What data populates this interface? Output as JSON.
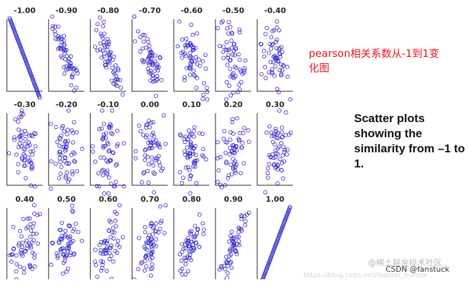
{
  "caption_cn": "pearson相关系数从-1到1变化图",
  "caption_en": "Scatter plots showing the similarity from –1 to 1.",
  "watermarks": {
    "juejin": "@稀土掘金技术社区",
    "csdn": "CSDN @fanstuck",
    "url": "https://blog.csdn.net/master_hunter"
  },
  "colors": {
    "marker": "#2a22c8",
    "axis": "#222222",
    "caption_cn": "#e8141c"
  },
  "chart_data": {
    "type": "scatter",
    "layout": "small-multiples",
    "rows": 3,
    "cols": 7,
    "marker": "open-circle",
    "panels": [
      {
        "label": "-1.00",
        "r": -1.0
      },
      {
        "label": "-0.90",
        "r": -0.9
      },
      {
        "label": "-0.80",
        "r": -0.8
      },
      {
        "label": "-0.70",
        "r": -0.7
      },
      {
        "label": "-0.60",
        "r": -0.6
      },
      {
        "label": "-0.50",
        "r": -0.5
      },
      {
        "label": "-0.40",
        "r": -0.4
      },
      {
        "label": "-0.30",
        "r": -0.3
      },
      {
        "label": "-0.20",
        "r": -0.2
      },
      {
        "label": "-0.10",
        "r": -0.1
      },
      {
        "label": "0.00",
        "r": 0.0
      },
      {
        "label": "0.10",
        "r": 0.1
      },
      {
        "label": "0.20",
        "r": 0.2
      },
      {
        "label": "0.30",
        "r": 0.3
      },
      {
        "label": "0.40",
        "r": 0.4
      },
      {
        "label": "0.50",
        "r": 0.5
      },
      {
        "label": "0.60",
        "r": 0.6
      },
      {
        "label": "0.70",
        "r": 0.7
      },
      {
        "label": "0.80",
        "r": 0.8
      },
      {
        "label": "0.90",
        "r": 0.9
      },
      {
        "label": "1.00",
        "r": 1.0
      }
    ]
  }
}
